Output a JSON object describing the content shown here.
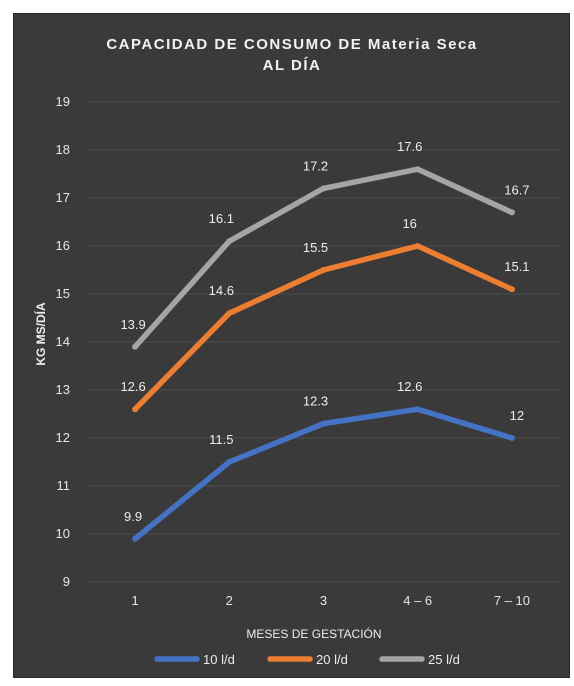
{
  "chart_data": {
    "type": "line",
    "title_line1": "CAPACIDAD DE CONSUMO DE Materia Seca",
    "title_line2": "AL DÍA",
    "xlabel": "MESES DE GESTACIÓN",
    "ylabel": "KG MS/DÍA",
    "categories": [
      "1",
      "2",
      "3",
      "4 – 6",
      "7 – 10"
    ],
    "ylim": [
      9,
      19
    ],
    "yticks": [
      9,
      10,
      11,
      12,
      13,
      14,
      15,
      16,
      17,
      18,
      19
    ],
    "grid": true,
    "legend_position": "bottom",
    "series": [
      {
        "name": "10 l/d",
        "values": [
          9.9,
          11.5,
          12.3,
          12.6,
          12
        ],
        "color": "#4472c4"
      },
      {
        "name": "20 l/d",
        "values": [
          12.6,
          14.6,
          15.5,
          16,
          15.1
        ],
        "color": "#ed7d31"
      },
      {
        "name": "25 l/d",
        "values": [
          13.9,
          16.1,
          17.2,
          17.6,
          16.7
        ],
        "color": "#a5a5a5"
      }
    ]
  }
}
